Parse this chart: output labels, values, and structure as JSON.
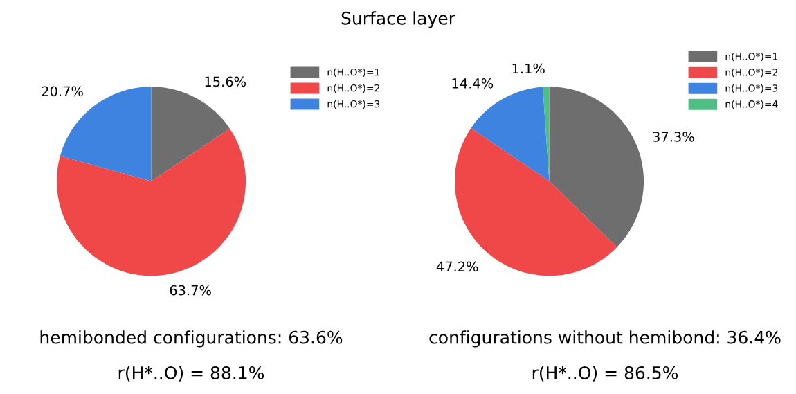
{
  "chart_data": [
    {
      "type": "pie",
      "title": "Surface layer",
      "categories": [
        "n(H..O*)=1",
        "n(H..O*)=2",
        "n(H..O*)=3"
      ],
      "values": [
        15.6,
        63.7,
        20.7
      ],
      "colors": [
        "#6e6e6e",
        "#f04848",
        "#3f83e0"
      ],
      "value_labels": [
        "15.6%",
        "63.7%",
        "20.7%"
      ],
      "legend": "top right",
      "annotations": [
        "hemibonded configurations: 63.6%",
        "r(H*..O) = 88.1%"
      ]
    },
    {
      "type": "pie",
      "categories": [
        "n(H..O*)=1",
        "n(H..O*)=2",
        "n(H..O*)=3",
        "n(H..O*)=4"
      ],
      "values": [
        37.3,
        47.2,
        14.4,
        1.1
      ],
      "colors": [
        "#6e6e6e",
        "#f04848",
        "#3f83e0",
        "#4fbf84"
      ],
      "value_labels": [
        "37.3%",
        "47.2%",
        "14.4%",
        "1.1%"
      ],
      "legend": "top right",
      "annotations": [
        "configurations without hemibond: 36.4%",
        "r(H*..O) = 86.5%"
      ]
    }
  ]
}
